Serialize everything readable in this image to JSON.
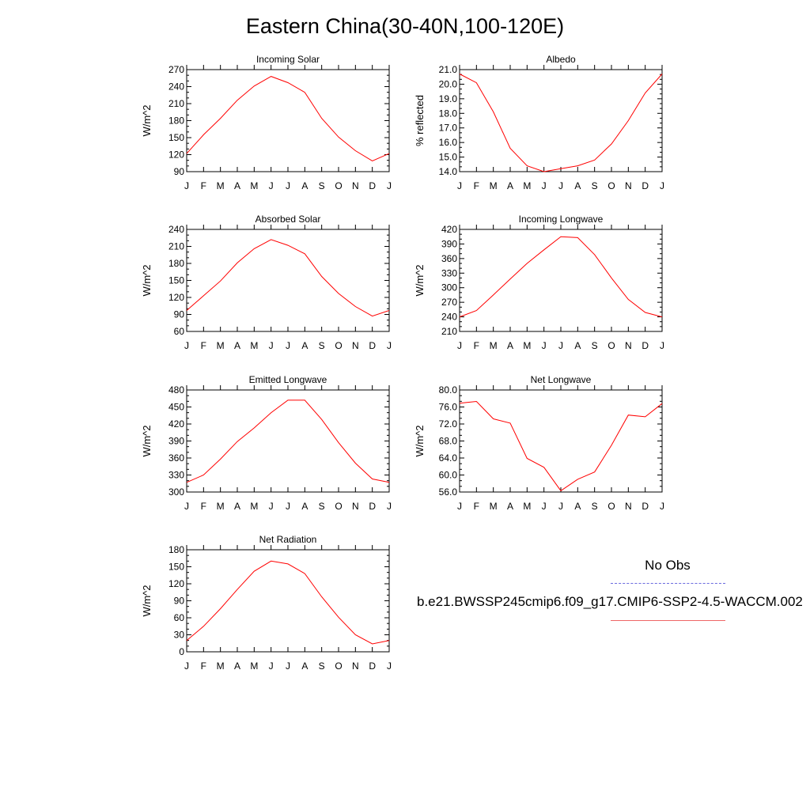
{
  "title": "Eastern China(30-40N,100-120E)",
  "legend": {
    "obs_label": "No Obs",
    "model_label": "b.e21.BWSSP245cmip6.f09_g17.CMIP6-SSP2-4.5-WACCM.002",
    "obs_color": "#6a6adf",
    "model_color": "#ff0000"
  },
  "chart_data": [
    {
      "type": "line",
      "title": "Incoming Solar",
      "ylabel": "W/m^2",
      "categories": [
        "J",
        "F",
        "M",
        "A",
        "M",
        "J",
        "J",
        "A",
        "S",
        "O",
        "N",
        "D",
        "J"
      ],
      "ylim": [
        90,
        270
      ],
      "yticks": [
        "90",
        "120",
        "150",
        "180",
        "210",
        "240",
        "270"
      ],
      "series": [
        {
          "values": [
            122,
            155,
            184,
            216,
            241,
            258,
            247,
            230,
            184,
            151,
            127,
            109,
            122
          ],
          "color": "#ff0000"
        }
      ]
    },
    {
      "type": "line",
      "title": "Albedo",
      "ylabel": "% reflected",
      "categories": [
        "J",
        "F",
        "M",
        "A",
        "M",
        "J",
        "J",
        "A",
        "S",
        "O",
        "N",
        "D",
        "J"
      ],
      "ylim": [
        14.0,
        21.0
      ],
      "yticks": [
        "14.0",
        "15.0",
        "16.0",
        "17.0",
        "18.0",
        "19.0",
        "20.0",
        "21.0"
      ],
      "series": [
        {
          "values": [
            20.7,
            20.1,
            18.1,
            15.6,
            14.4,
            14.0,
            14.2,
            14.4,
            14.8,
            15.9,
            17.5,
            19.4,
            20.7
          ],
          "color": "#ff0000"
        }
      ]
    },
    {
      "type": "line",
      "title": "Absorbed Solar",
      "ylabel": "W/m^2",
      "categories": [
        "J",
        "F",
        "M",
        "A",
        "M",
        "J",
        "J",
        "A",
        "S",
        "O",
        "N",
        "D",
        "J"
      ],
      "ylim": [
        60,
        240
      ],
      "yticks": [
        "60",
        "90",
        "120",
        "150",
        "180",
        "210",
        "240"
      ],
      "series": [
        {
          "values": [
            97,
            123,
            149,
            181,
            206,
            222,
            212,
            197,
            157,
            127,
            104,
            87,
            97
          ],
          "color": "#ff0000"
        }
      ]
    },
    {
      "type": "line",
      "title": "Incoming Longwave",
      "ylabel": "W/m^2",
      "categories": [
        "J",
        "F",
        "M",
        "A",
        "M",
        "J",
        "J",
        "A",
        "S",
        "O",
        "N",
        "D",
        "J"
      ],
      "ylim": [
        210,
        420
      ],
      "yticks": [
        "210",
        "240",
        "270",
        "300",
        "330",
        "360",
        "390",
        "420"
      ],
      "series": [
        {
          "values": [
            240,
            253,
            285,
            318,
            350,
            378,
            405,
            403,
            368,
            320,
            276,
            249,
            240
          ],
          "color": "#ff0000"
        }
      ]
    },
    {
      "type": "line",
      "title": "Emitted Longwave",
      "ylabel": "W/m^2",
      "categories": [
        "J",
        "F",
        "M",
        "A",
        "M",
        "J",
        "J",
        "A",
        "S",
        "O",
        "N",
        "D",
        "J"
      ],
      "ylim": [
        300,
        480
      ],
      "yticks": [
        "300",
        "330",
        "360",
        "390",
        "420",
        "450",
        "480"
      ],
      "series": [
        {
          "values": [
            317,
            330,
            358,
            389,
            413,
            440,
            462,
            462,
            428,
            387,
            351,
            323,
            317
          ],
          "color": "#ff0000"
        }
      ]
    },
    {
      "type": "line",
      "title": "Net Longwave",
      "ylabel": "W/m^2",
      "categories": [
        "J",
        "F",
        "M",
        "A",
        "M",
        "J",
        "J",
        "A",
        "S",
        "O",
        "N",
        "D",
        "J"
      ],
      "ylim": [
        56.0,
        80.0
      ],
      "yticks": [
        "56.0",
        "60.0",
        "64.0",
        "68.0",
        "72.0",
        "76.0",
        "80.0"
      ],
      "series": [
        {
          "values": [
            76.9,
            77.3,
            73.2,
            72.2,
            63.9,
            61.8,
            56.3,
            59.0,
            60.7,
            67.0,
            74.1,
            73.7,
            76.8
          ],
          "color": "#ff0000"
        }
      ]
    },
    {
      "type": "line",
      "title": "Net Radiation",
      "ylabel": "W/m^2",
      "categories": [
        "J",
        "F",
        "M",
        "A",
        "M",
        "J",
        "J",
        "A",
        "S",
        "O",
        "N",
        "D",
        "J"
      ],
      "ylim": [
        0,
        180
      ],
      "yticks": [
        "0",
        "30",
        "60",
        "90",
        "120",
        "150",
        "180"
      ],
      "series": [
        {
          "values": [
            20,
            45,
            76,
            110,
            142,
            160,
            155,
            138,
            97,
            61,
            30,
            14,
            20
          ],
          "color": "#ff0000"
        }
      ]
    }
  ]
}
